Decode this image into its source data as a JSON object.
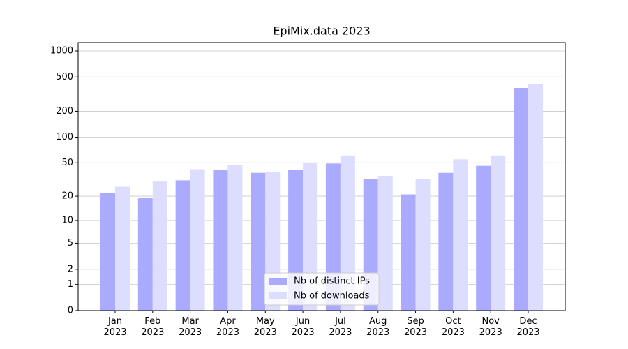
{
  "chart_data": {
    "type": "bar",
    "title": "EpiMix.data 2023",
    "categories": [
      "Jan\n2023",
      "Feb\n2023",
      "Mar\n2023",
      "Apr\n2023",
      "May\n2023",
      "Jun\n2023",
      "Jul\n2023",
      "Aug\n2023",
      "Sep\n2023",
      "Oct\n2023",
      "Nov\n2023",
      "Dec\n2023"
    ],
    "series": [
      {
        "name": "Nb of distinct IPs",
        "color": "#aaaaff",
        "values": [
          22,
          19,
          31,
          41,
          38,
          41,
          49,
          32,
          21,
          38,
          46,
          373
        ]
      },
      {
        "name": "Nb of downloads",
        "color": "#ddddff",
        "values": [
          26,
          30,
          42,
          47,
          39,
          50,
          61,
          35,
          32,
          55,
          61,
          417
        ]
      }
    ],
    "yscale": "log1p",
    "ylim": [
      0,
      1250
    ],
    "yticks": [
      0,
      1,
      2,
      5,
      10,
      20,
      50,
      100,
      200,
      500,
      1000
    ],
    "grid": true,
    "legend": "lower center"
  }
}
